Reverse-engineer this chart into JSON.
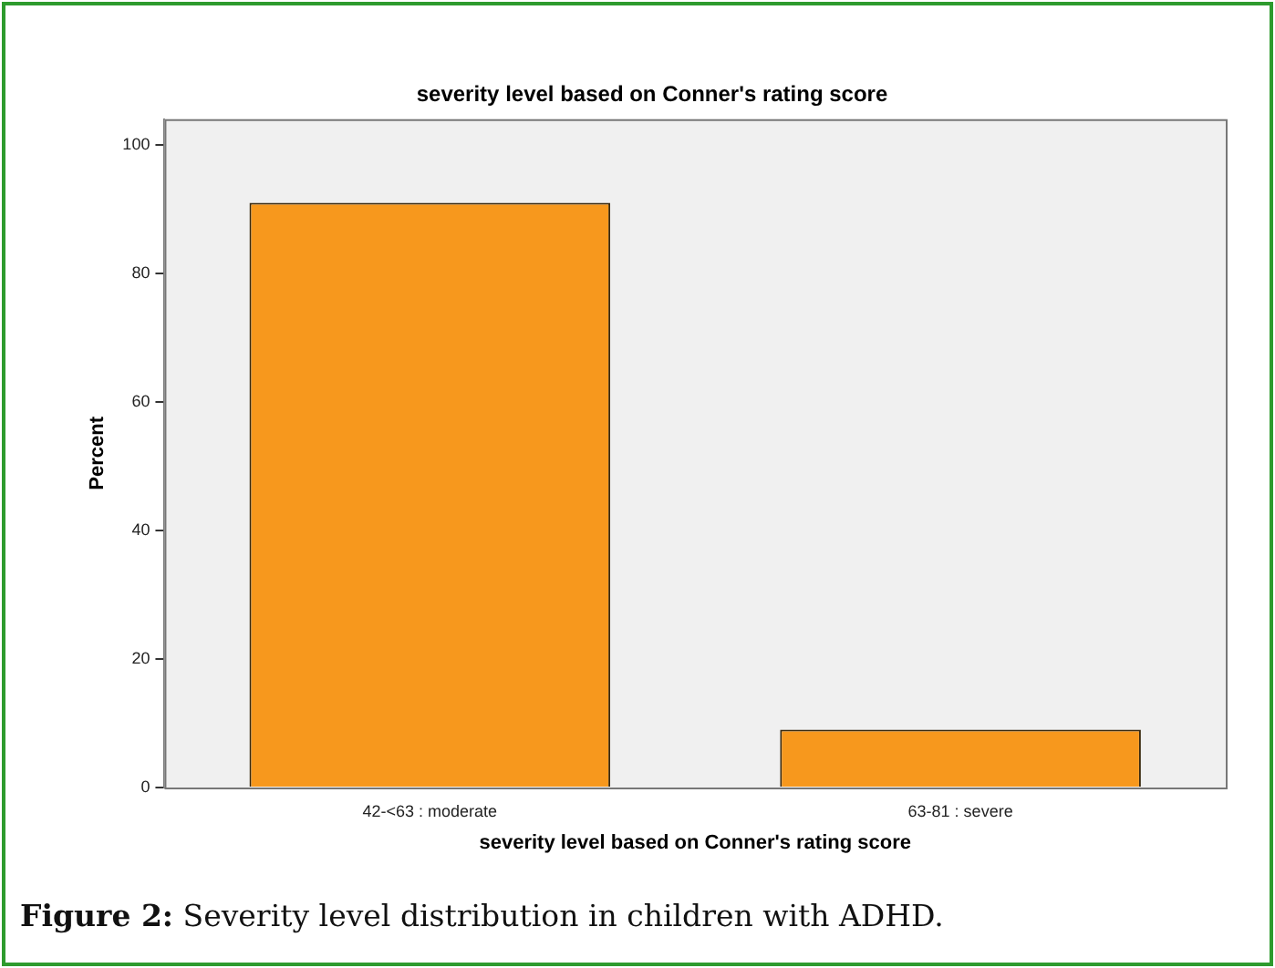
{
  "chart_data": {
    "type": "bar",
    "title": "severity level based on Conner's rating score",
    "xlabel": "severity level based on Conner's rating score",
    "ylabel": "Percent",
    "categories": [
      "42-<63 : moderate",
      "63-81 : severe"
    ],
    "values": [
      91,
      9
    ],
    "color": "#f7981d",
    "ylim": [
      0,
      104
    ],
    "yticks": [
      0,
      20,
      40,
      60,
      80,
      100
    ],
    "grid": false,
    "legend": false,
    "annotations": [
      "Figure 2: Severity level distribution in children with ADHD."
    ]
  }
}
